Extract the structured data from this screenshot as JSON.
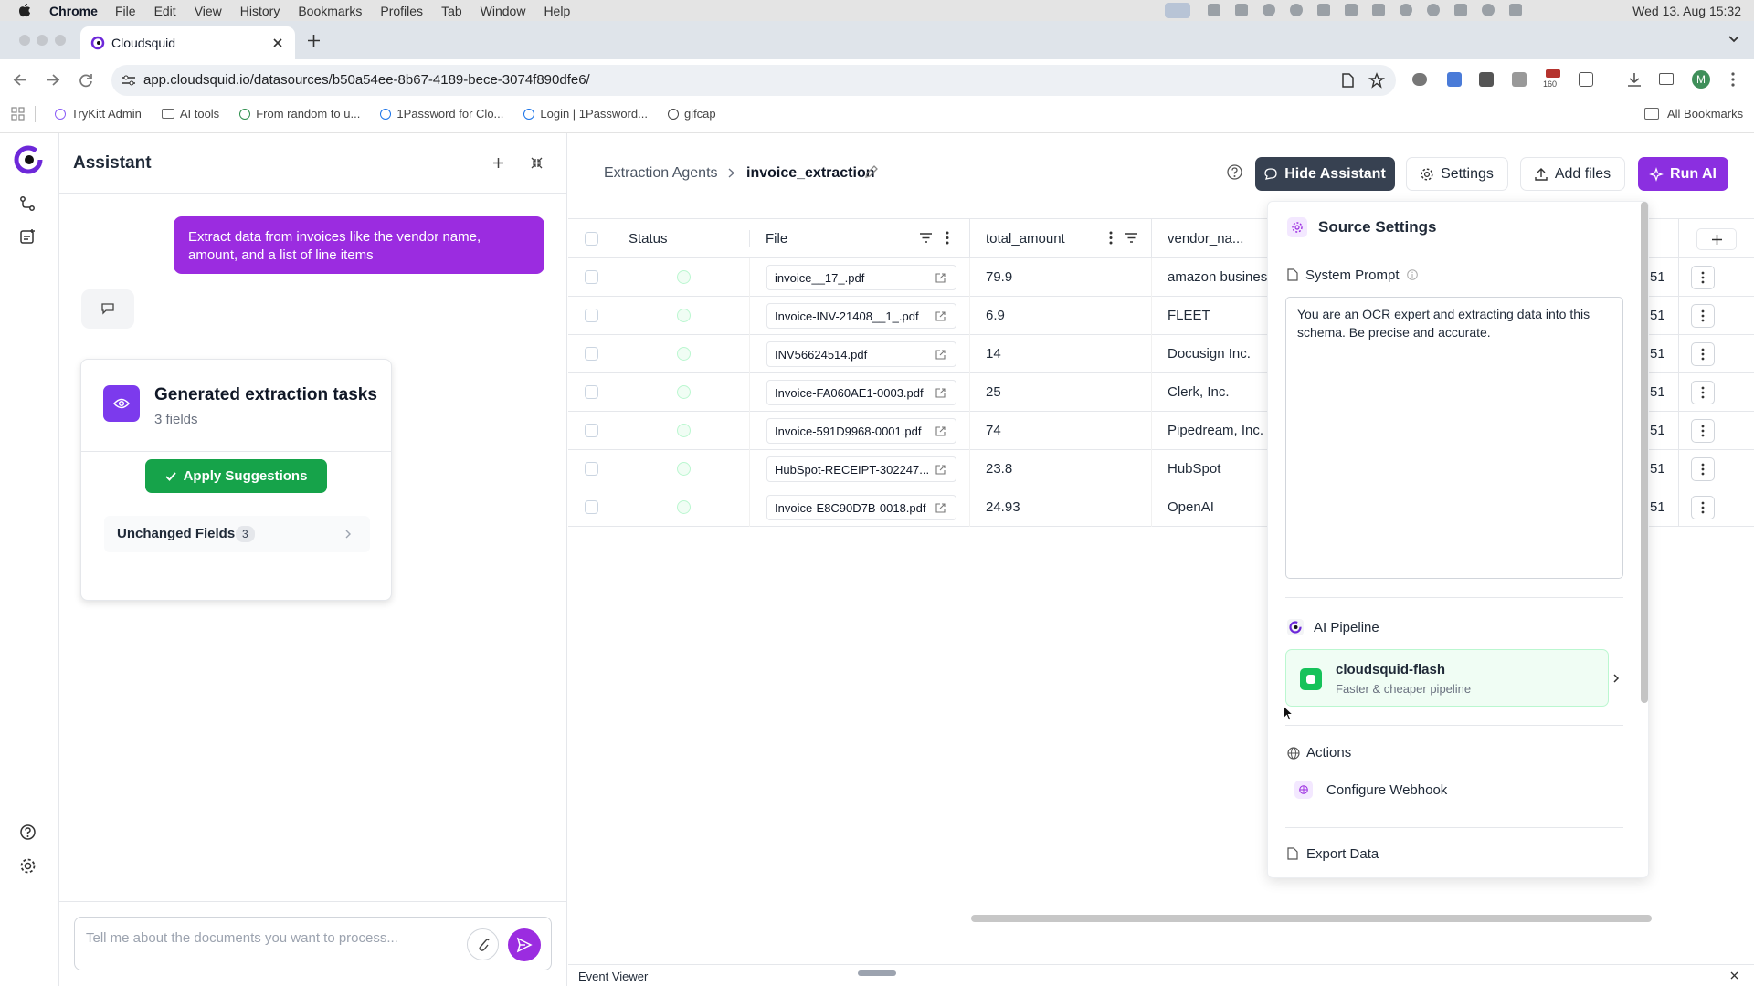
{
  "menu_bar": {
    "app": "Chrome",
    "items": [
      "File",
      "Edit",
      "View",
      "History",
      "Bookmarks",
      "Profiles",
      "Tab",
      "Window",
      "Help"
    ],
    "clock": "Wed 13. Aug 15:32"
  },
  "browser": {
    "tab_title": "Cloudsquid",
    "url": "app.cloudsquid.io/datasources/b50a54ee-8b67-4189-bece-3074f890dfe6/",
    "extension_badge": "160",
    "avatar": "M",
    "bookmarks": [
      "TryKitt Admin",
      "AI tools",
      "From random to u...",
      "1Password for Clo...",
      "Login | 1Password...",
      "gifcap"
    ],
    "all_bookmarks": "All Bookmarks"
  },
  "assistant": {
    "title": "Assistant",
    "user_message": "Extract data from invoices like the vendor name, amount, and a list of line items",
    "card": {
      "title": "Generated extraction tasks",
      "subtitle": "3 fields",
      "button": "Apply Suggestions",
      "unchanged_label": "Unchanged Fields",
      "unchanged_count": 3
    },
    "input_placeholder": "Tell me about the documents you want to process..."
  },
  "header": {
    "breadcrumb": [
      "Extraction Agents",
      "invoice_extraction"
    ],
    "buttons": [
      "Hide Assistant",
      "Settings",
      "Add files",
      "Run AI"
    ]
  },
  "table": {
    "columns": [
      "Status",
      "File",
      "total_amount",
      "vendor_na..."
    ],
    "rows": [
      [
        "invoice__17_.pdf",
        79.9,
        "amazon business",
        "51"
      ],
      [
        "Invoice-INV-21408__1_.pdf",
        6.9,
        "FLEET",
        "51"
      ],
      [
        "INV56624514.pdf",
        14,
        "Docusign Inc.",
        "51"
      ],
      [
        "Invoice-FA060AE1-0003.pdf",
        25,
        "Clerk, Inc.",
        "51"
      ],
      [
        "Invoice-591D9968-0001.pdf",
        74,
        "Pipedream, Inc.",
        "51"
      ],
      [
        "HubSpot-RECEIPT-302247...",
        23.8,
        "HubSpot",
        "51"
      ],
      [
        "Invoice-E8C90D7B-0018.pdf",
        24.93,
        "OpenAI",
        "51"
      ]
    ]
  },
  "source_settings": {
    "title": "Source Settings",
    "system_prompt_label": "System Prompt",
    "system_prompt": "You are an OCR expert and extracting data into this schema. Be precise and accurate.",
    "pipeline_label": "AI Pipeline",
    "pipeline_name": "cloudsquid-flash",
    "pipeline_desc": "Faster & cheaper pipeline",
    "actions_label": "Actions",
    "webhook": "Configure Webhook",
    "export": "Export Data"
  },
  "event_viewer": "Event Viewer"
}
